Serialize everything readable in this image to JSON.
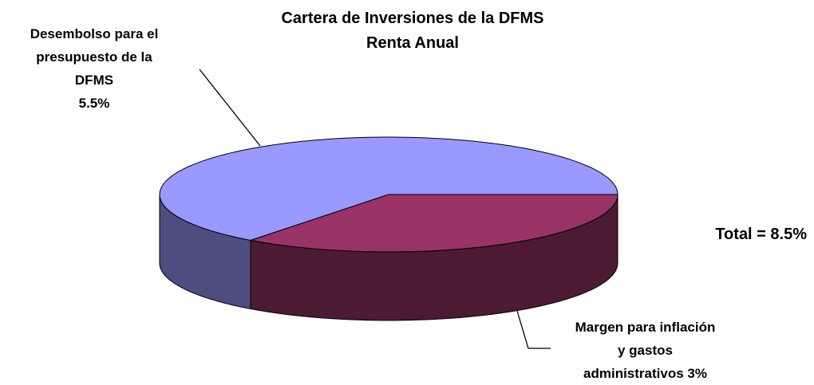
{
  "chart_data": {
    "type": "pie",
    "title": "Cartera de Inversiones de la DFMS",
    "subtitle": "Renta Anual",
    "categories": [
      "Desembolso para el presupuesto de la DFMS",
      "Margen para inflación y gastos administrativos"
    ],
    "values": [
      5.5,
      3
    ],
    "value_labels": [
      "5.5%",
      "3%"
    ],
    "colors": [
      "#9999ff",
      "#993366"
    ],
    "annotation": "Total = 8.5%"
  }
}
